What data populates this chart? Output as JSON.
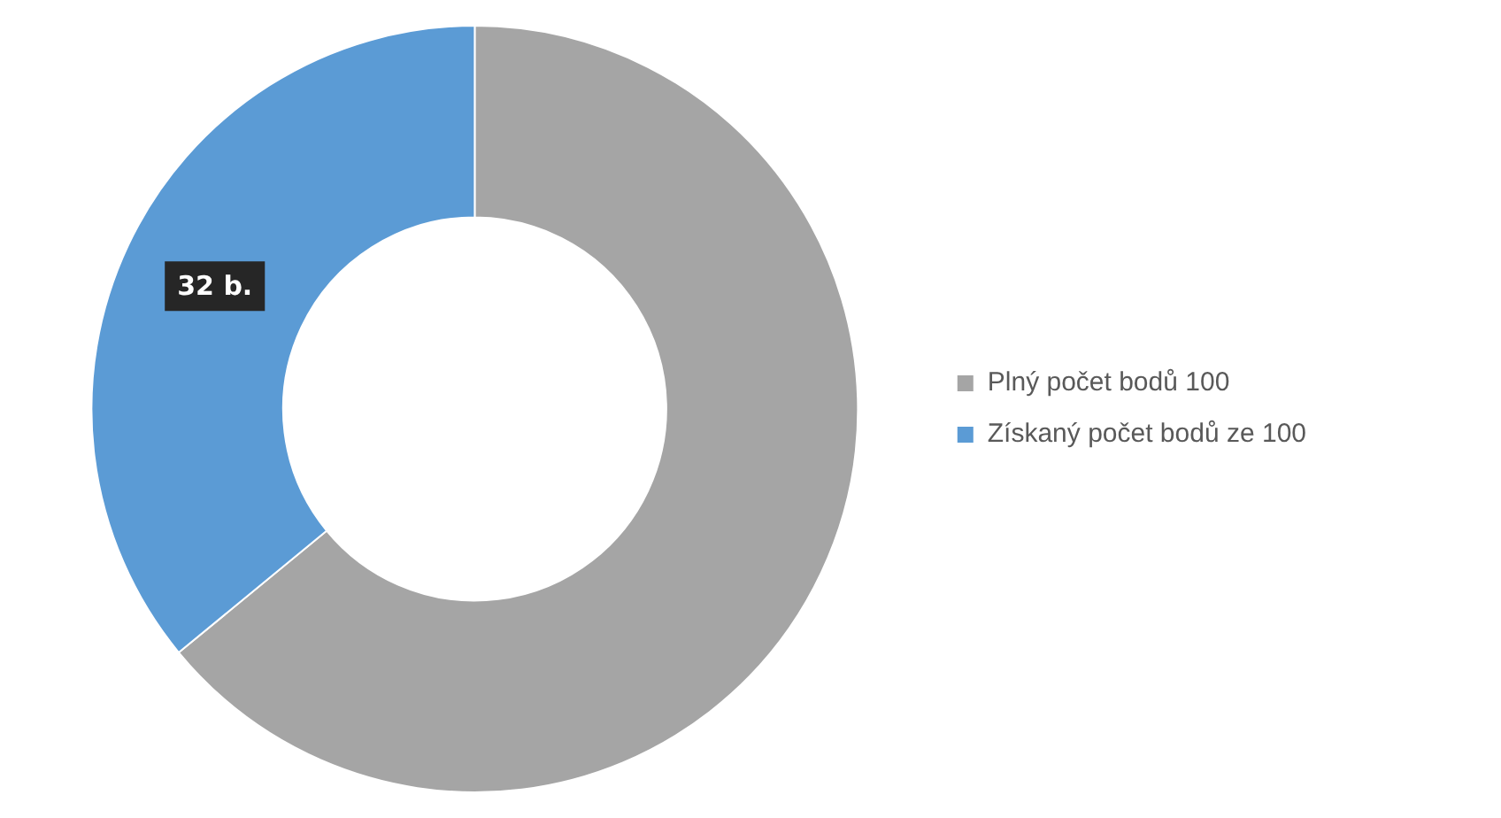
{
  "chart_data": {
    "type": "donut",
    "categories": [
      "Plný počet bodů 100",
      "Získaný počet bodů ze 100"
    ],
    "values": [
      57,
      32
    ],
    "colors": [
      "#a5a5a5",
      "#5b9bd5"
    ],
    "value_labels": [
      null,
      "32 b."
    ],
    "legend": "right"
  }
}
